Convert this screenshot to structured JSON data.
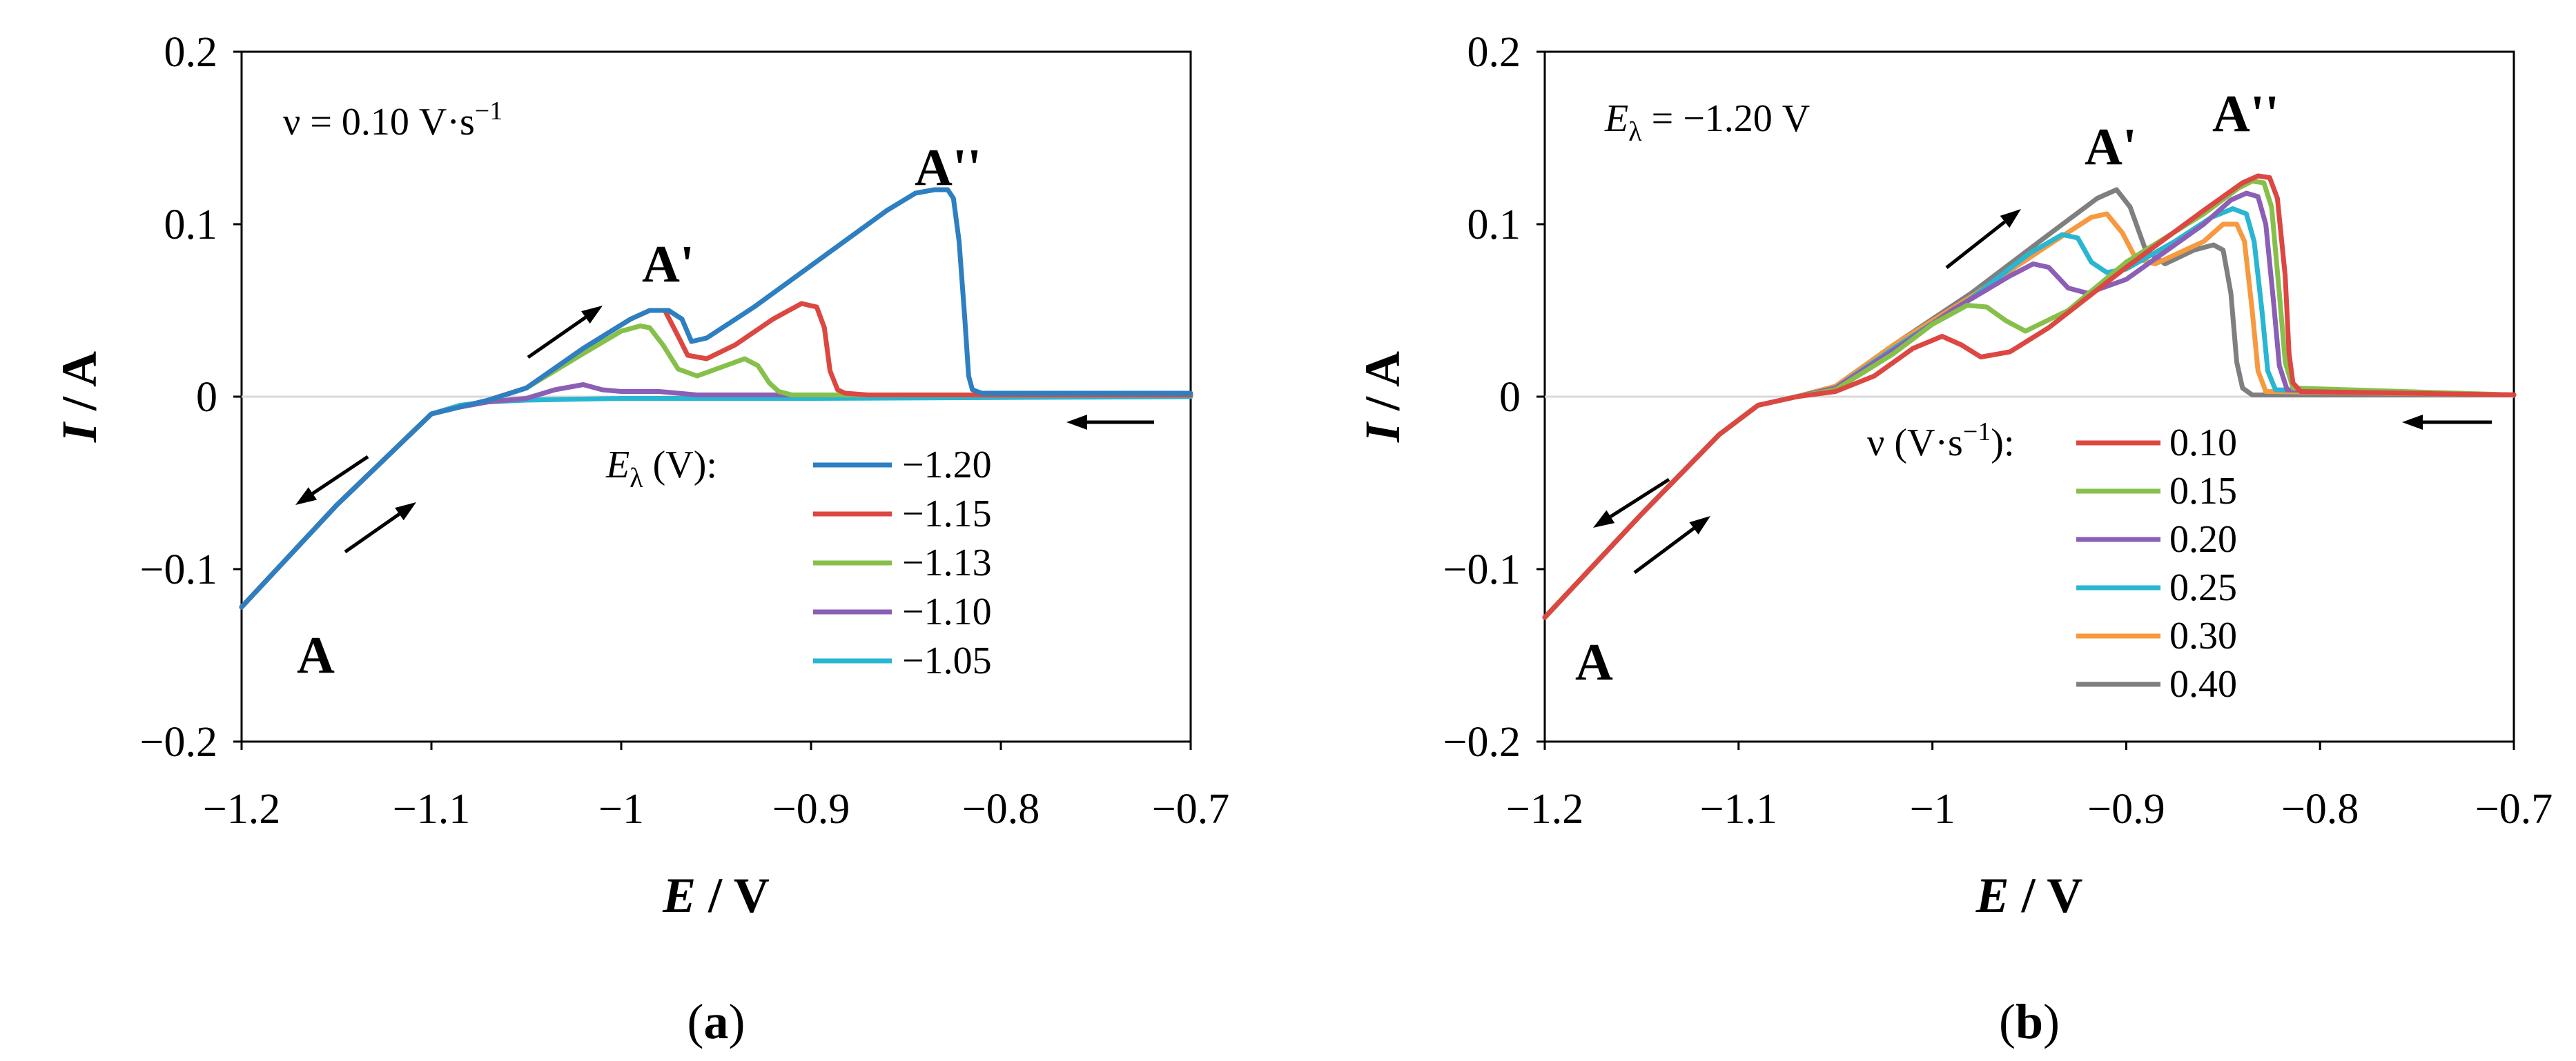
{
  "chart_data": [
    {
      "type": "line",
      "panel_label": "a",
      "xlabel_sym": "E",
      "xlabel_unit": "V",
      "ylabel_sym": "I",
      "ylabel_unit": "A",
      "xlim": [
        -1.2,
        -0.7
      ],
      "ylim": [
        -0.2,
        0.2
      ],
      "xticks": [
        -1.2,
        -1.1,
        -1.0,
        -0.9,
        -0.8,
        -0.7
      ],
      "xtick_labels": [
        "−1.2",
        "−1.1",
        "−1",
        "−0.9",
        "−0.8",
        "−0.7"
      ],
      "yticks": [
        -0.2,
        -0.1,
        0,
        0.1,
        0.2
      ],
      "ytick_labels": [
        "−0.2",
        "−0.1",
        "0",
        "0.1",
        "0.2"
      ],
      "annotation": "ν = 0.10 V·s",
      "annotation_sup": "−1",
      "peak_labels": [
        "A",
        "A'",
        "A''"
      ],
      "legend_title_sym": "E",
      "legend_title_sub": "λ",
      "legend_title_unit": " (V):",
      "series": [
        {
          "name": "−1.20",
          "color": "#2e7fc1",
          "x": [
            -1.2,
            -1.15,
            -1.1,
            -1.085,
            -1.07,
            -1.05,
            -1.02,
            -0.995,
            -0.985,
            -0.975,
            -0.968,
            -0.963,
            -0.955,
            -0.93,
            -0.88,
            -0.86,
            -0.845,
            -0.835,
            -0.828,
            -0.825,
            -0.822,
            -0.819,
            -0.817,
            -0.815,
            -0.81,
            -0.7
          ],
          "y": [
            -0.122,
            -0.063,
            -0.01,
            -0.006,
            -0.002,
            0.005,
            0.028,
            0.045,
            0.05,
            0.05,
            0.045,
            0.032,
            0.034,
            0.052,
            0.092,
            0.108,
            0.118,
            0.12,
            0.12,
            0.115,
            0.09,
            0.045,
            0.012,
            0.004,
            0.002,
            0.002
          ]
        },
        {
          "name": "−1.15",
          "color": "#dc4742",
          "x": [
            -1.2,
            -1.15,
            -1.1,
            -1.085,
            -1.07,
            -1.05,
            -1.02,
            -0.995,
            -0.985,
            -0.977,
            -0.97,
            -0.965,
            -0.955,
            -0.94,
            -0.92,
            -0.905,
            -0.897,
            -0.893,
            -0.89,
            -0.886,
            -0.882,
            -0.87,
            -0.7
          ],
          "y": [
            -0.122,
            -0.063,
            -0.01,
            -0.006,
            -0.002,
            0.005,
            0.028,
            0.045,
            0.05,
            0.05,
            0.035,
            0.024,
            0.022,
            0.03,
            0.045,
            0.054,
            0.052,
            0.04,
            0.015,
            0.004,
            0.002,
            0.001,
            0.001
          ]
        },
        {
          "name": "−1.13",
          "color": "#86c04a",
          "x": [
            -1.2,
            -1.15,
            -1.1,
            -1.085,
            -1.07,
            -1.05,
            -1.02,
            -1.0,
            -0.99,
            -0.985,
            -0.978,
            -0.97,
            -0.96,
            -0.945,
            -0.935,
            -0.928,
            -0.922,
            -0.917,
            -0.91,
            -0.7
          ],
          "y": [
            -0.122,
            -0.063,
            -0.01,
            -0.006,
            -0.002,
            0.005,
            0.025,
            0.038,
            0.041,
            0.04,
            0.03,
            0.016,
            0.012,
            0.018,
            0.022,
            0.018,
            0.008,
            0.003,
            0.001,
            0.001
          ]
        },
        {
          "name": "−1.10",
          "color": "#8a5fb5",
          "x": [
            -1.2,
            -1.15,
            -1.1,
            -1.085,
            -1.07,
            -1.05,
            -1.035,
            -1.02,
            -1.01,
            -1.0,
            -0.98,
            -0.96,
            -0.7
          ],
          "y": [
            -0.122,
            -0.063,
            -0.01,
            -0.006,
            -0.003,
            -0.001,
            0.004,
            0.007,
            0.004,
            0.003,
            0.003,
            0.001,
            0.001
          ]
        },
        {
          "name": "−1.05",
          "color": "#29b6d2",
          "x": [
            -1.2,
            -1.15,
            -1.1,
            -1.085,
            -1.07,
            -1.05,
            -1.0,
            -0.9,
            -0.7
          ],
          "y": [
            -0.122,
            -0.063,
            -0.01,
            -0.005,
            -0.003,
            -0.002,
            -0.001,
            -0.001,
            0.0
          ]
        }
      ]
    },
    {
      "type": "line",
      "panel_label": "b",
      "xlabel_sym": "E",
      "xlabel_unit": "V",
      "ylabel_sym": "I",
      "ylabel_unit": "A",
      "xlim": [
        -1.2,
        -0.7
      ],
      "ylim": [
        -0.2,
        0.2
      ],
      "xticks": [
        -1.2,
        -1.1,
        -1.0,
        -0.9,
        -0.8,
        -0.7
      ],
      "xtick_labels": [
        "−1.2",
        "−1.1",
        "−1",
        "−0.9",
        "−0.8",
        "−0.7"
      ],
      "yticks": [
        -0.2,
        -0.1,
        0,
        0.1,
        0.2
      ],
      "ytick_labels": [
        "−0.2",
        "−0.1",
        "0",
        "0.1",
        "0.2"
      ],
      "annotation_sym": "E",
      "annotation_sub": "λ",
      "annotation_val": " = −1.20 V",
      "peak_labels": [
        "A",
        "A'",
        "A''"
      ],
      "legend_title": "ν (V·s",
      "legend_title_sup": "−1",
      "legend_title_end": "):",
      "series": [
        {
          "name": "0.10",
          "color": "#dc4742",
          "x": [
            -1.2,
            -1.15,
            -1.11,
            -1.09,
            -1.07,
            -1.05,
            -1.03,
            -1.01,
            -0.995,
            -0.985,
            -0.975,
            -0.96,
            -0.94,
            -0.9,
            -0.86,
            -0.84,
            -0.832,
            -0.826,
            -0.822,
            -0.818,
            -0.816,
            -0.814,
            -0.81,
            -0.7
          ],
          "y": [
            -0.128,
            -0.068,
            -0.022,
            -0.005,
            0.0,
            0.003,
            0.012,
            0.028,
            0.035,
            0.03,
            0.023,
            0.026,
            0.04,
            0.075,
            0.108,
            0.124,
            0.128,
            0.127,
            0.115,
            0.07,
            0.025,
            0.008,
            0.003,
            0.001
          ]
        },
        {
          "name": "0.15",
          "color": "#86c04a",
          "x": [
            -1.2,
            -1.15,
            -1.11,
            -1.09,
            -1.07,
            -1.05,
            -1.02,
            -1.0,
            -0.982,
            -0.972,
            -0.962,
            -0.952,
            -0.93,
            -0.9,
            -0.86,
            -0.842,
            -0.835,
            -0.829,
            -0.825,
            -0.821,
            -0.818,
            -0.814,
            -0.7
          ],
          "y": [
            -0.128,
            -0.068,
            -0.022,
            -0.005,
            0.0,
            0.004,
            0.025,
            0.042,
            0.053,
            0.052,
            0.044,
            0.038,
            0.05,
            0.078,
            0.106,
            0.121,
            0.125,
            0.124,
            0.11,
            0.06,
            0.02,
            0.005,
            0.001
          ]
        },
        {
          "name": "0.20",
          "color": "#8a5fb5",
          "x": [
            -1.2,
            -1.15,
            -1.11,
            -1.09,
            -1.07,
            -1.05,
            -1.02,
            -0.99,
            -0.96,
            -0.948,
            -0.94,
            -0.93,
            -0.92,
            -0.9,
            -0.86,
            -0.846,
            -0.838,
            -0.832,
            -0.828,
            -0.824,
            -0.821,
            -0.817,
            -0.7
          ],
          "y": [
            -0.128,
            -0.068,
            -0.022,
            -0.005,
            0.0,
            0.005,
            0.027,
            0.05,
            0.07,
            0.077,
            0.075,
            0.063,
            0.06,
            0.068,
            0.1,
            0.114,
            0.118,
            0.116,
            0.1,
            0.055,
            0.018,
            0.004,
            0.001
          ]
        },
        {
          "name": "0.25",
          "color": "#29b6d2",
          "x": [
            -1.2,
            -1.15,
            -1.11,
            -1.09,
            -1.07,
            -1.05,
            -1.02,
            -0.98,
            -0.95,
            -0.933,
            -0.925,
            -0.918,
            -0.91,
            -0.9,
            -0.875,
            -0.856,
            -0.845,
            -0.838,
            -0.834,
            -0.83,
            -0.827,
            -0.823,
            -0.7
          ],
          "y": [
            -0.128,
            -0.068,
            -0.022,
            -0.005,
            0.0,
            0.005,
            0.028,
            0.057,
            0.083,
            0.094,
            0.092,
            0.078,
            0.072,
            0.074,
            0.09,
            0.104,
            0.109,
            0.106,
            0.09,
            0.05,
            0.015,
            0.004,
            0.001
          ]
        },
        {
          "name": "0.30",
          "color": "#f6993f",
          "x": [
            -1.2,
            -1.15,
            -1.11,
            -1.09,
            -1.07,
            -1.05,
            -1.02,
            -0.98,
            -0.94,
            -0.918,
            -0.91,
            -0.902,
            -0.895,
            -0.885,
            -0.86,
            -0.85,
            -0.843,
            -0.839,
            -0.835,
            -0.832,
            -0.828,
            -0.7
          ],
          "y": [
            -0.128,
            -0.068,
            -0.022,
            -0.005,
            0.0,
            0.006,
            0.03,
            0.058,
            0.088,
            0.104,
            0.106,
            0.095,
            0.08,
            0.077,
            0.09,
            0.1,
            0.1,
            0.09,
            0.05,
            0.015,
            0.003,
            0.001
          ]
        },
        {
          "name": "0.40",
          "color": "#7f7f7f",
          "x": [
            -1.2,
            -1.15,
            -1.11,
            -1.09,
            -1.07,
            -1.05,
            -1.02,
            -0.98,
            -0.94,
            -0.915,
            -0.905,
            -0.898,
            -0.89,
            -0.88,
            -0.865,
            -0.855,
            -0.85,
            -0.846,
            -0.843,
            -0.84,
            -0.835,
            -0.7
          ],
          "y": [
            -0.128,
            -0.068,
            -0.022,
            -0.005,
            0.0,
            0.006,
            0.03,
            0.06,
            0.094,
            0.115,
            0.12,
            0.11,
            0.085,
            0.077,
            0.085,
            0.088,
            0.085,
            0.06,
            0.02,
            0.005,
            0.001,
            0.001
          ]
        }
      ]
    }
  ]
}
